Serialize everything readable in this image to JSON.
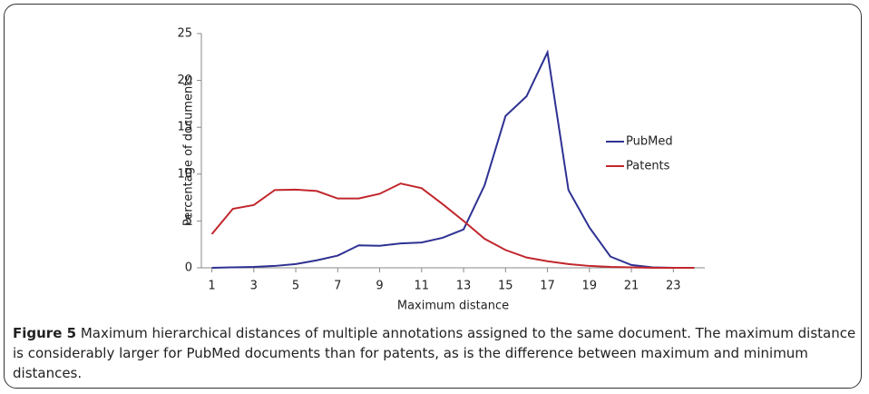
{
  "chart_data": {
    "type": "line",
    "x": [
      1,
      2,
      3,
      4,
      5,
      6,
      7,
      8,
      9,
      10,
      11,
      12,
      13,
      14,
      15,
      16,
      17,
      18,
      19,
      20,
      21,
      22,
      23,
      24
    ],
    "xlim": [
      0.5,
      24.5
    ],
    "xticks": [
      1,
      3,
      5,
      7,
      9,
      11,
      13,
      15,
      17,
      19,
      21,
      23
    ],
    "ylim": [
      0,
      25
    ],
    "yticks": [
      0,
      5,
      10,
      15,
      20,
      25
    ],
    "xlabel": "Maximum distance",
    "ylabel": "Percentage of documents",
    "legend": "right",
    "series": [
      {
        "name": "PubMed",
        "color": "#2e3192",
        "values": [
          0,
          0.05,
          0.1,
          0.2,
          0.4,
          0.8,
          1.3,
          2.4,
          2.35,
          2.6,
          2.7,
          3.2,
          4.1,
          8.8,
          16.2,
          18.3,
          23,
          8.3,
          4.3,
          1.2,
          0.3,
          0.05,
          0,
          0
        ]
      },
      {
        "name": "Patents",
        "color": "#c1272d",
        "values": [
          3.6,
          6.3,
          6.7,
          8.3,
          8.35,
          8.2,
          7.4,
          7.4,
          7.9,
          9.0,
          8.5,
          6.8,
          5.0,
          3.1,
          1.9,
          1.1,
          0.7,
          0.4,
          0.2,
          0.1,
          0.05,
          0,
          0,
          0
        ]
      }
    ]
  },
  "caption": {
    "label": "Figure 5",
    "text": "Maximum hierarchical distances of multiple annotations assigned to the same document. The maximum distance is considerably larger for PubMed documents than for patents, as is the difference between maximum and minimum distances."
  }
}
